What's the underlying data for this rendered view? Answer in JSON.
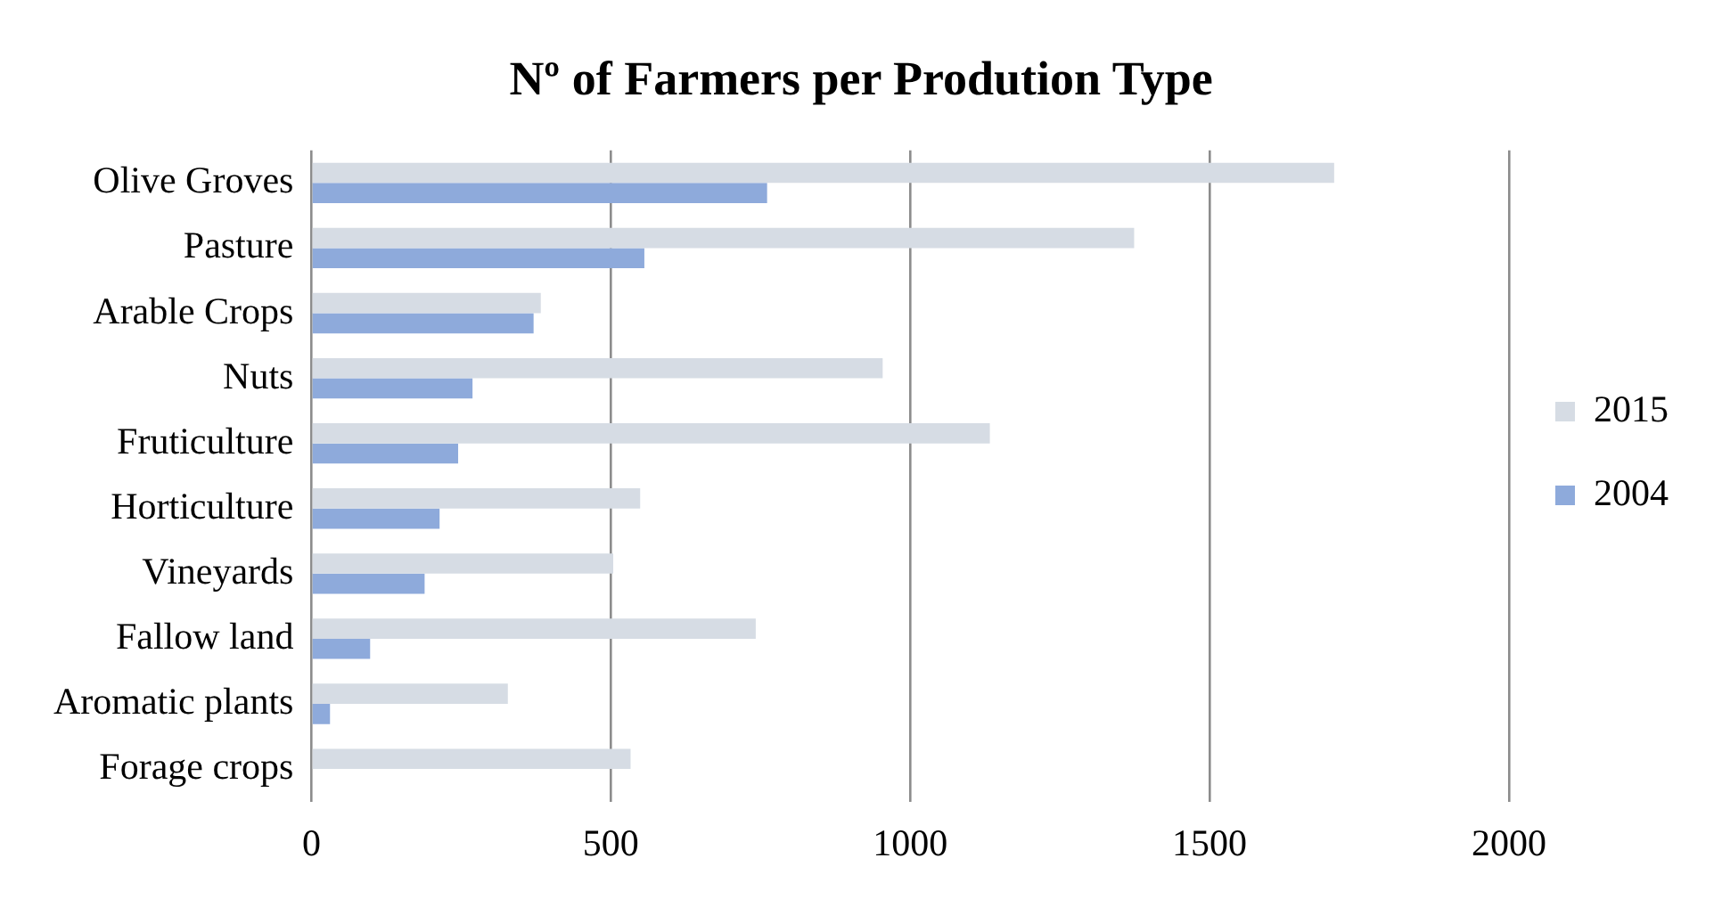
{
  "chart_data": {
    "type": "bar",
    "orientation": "horizontal",
    "title": "Nº of Farmers per Prodution Type",
    "categories": [
      "Olive Groves",
      "Pasture",
      "Arable Crops",
      "Nuts",
      "Fruticulture",
      "Horticulture",
      "Vineyards",
      "Fallow land",
      "Aromatic plants",
      "Forage crops"
    ],
    "series": [
      {
        "name": "2015",
        "color": "#d6dce4",
        "values": [
          1708,
          1374,
          383,
          954,
          1133,
          549,
          504,
          742,
          328,
          533
        ]
      },
      {
        "name": "2004",
        "color": "#8eaadb",
        "values": [
          761,
          556,
          371,
          269,
          245,
          214,
          189,
          98,
          31,
          0
        ]
      }
    ],
    "xlim": [
      0,
      2000
    ],
    "xticks": [
      0,
      500,
      1000,
      1500,
      2000
    ],
    "grid": "x",
    "legend": "right"
  }
}
